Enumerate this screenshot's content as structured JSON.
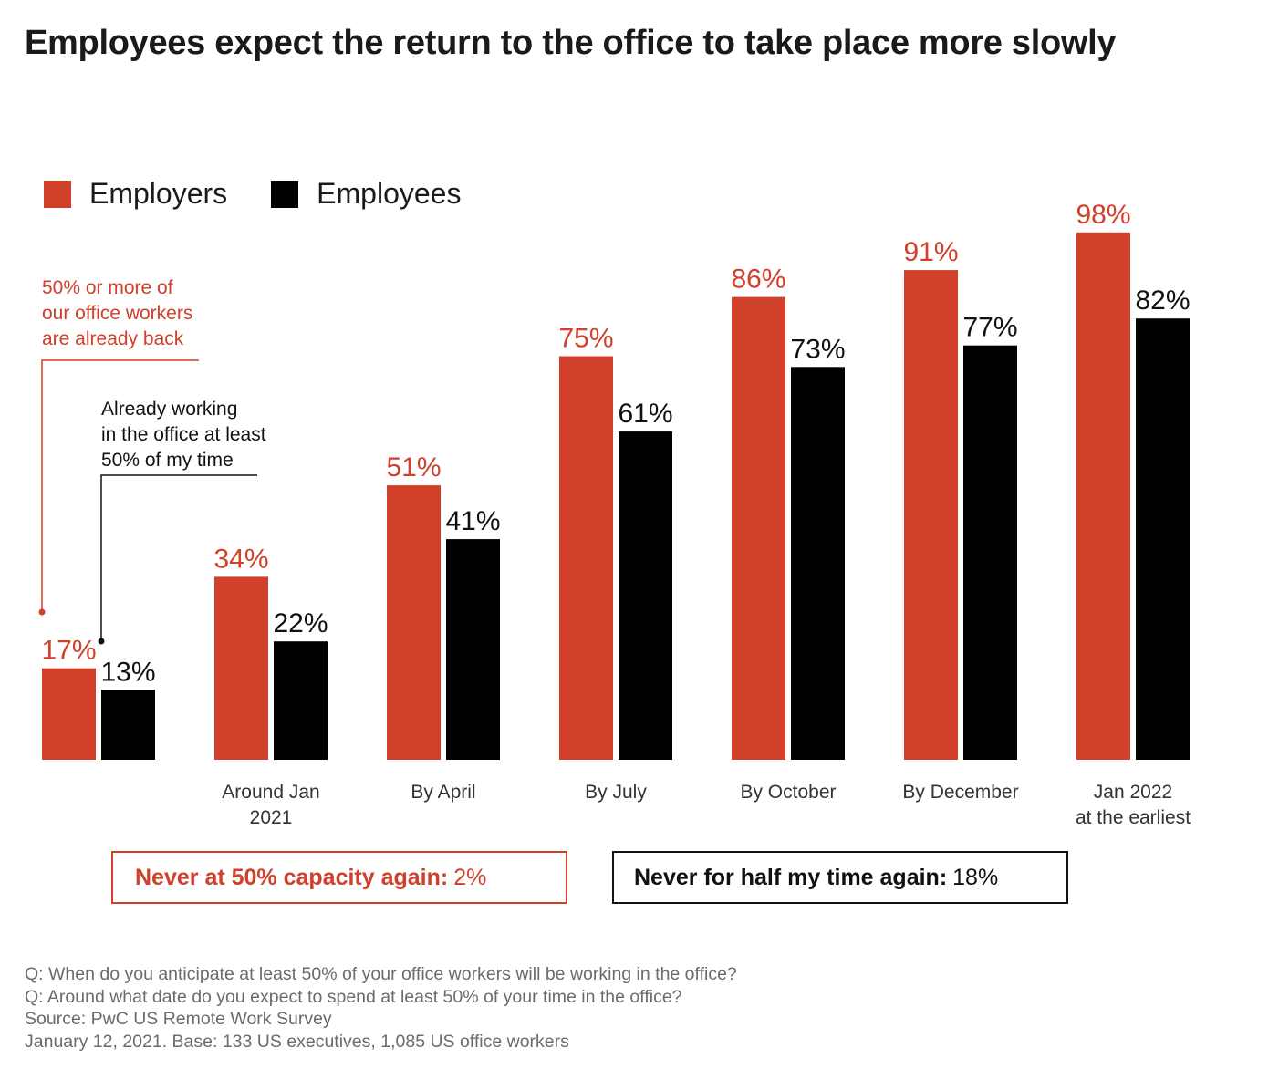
{
  "title": "Employees expect the return to the office to take place more slowly",
  "legend": [
    {
      "label": "Employers",
      "color": "#d0402a"
    },
    {
      "label": "Employees",
      "color": "#000000"
    }
  ],
  "callouts": {
    "employers": [
      "50% or more of",
      "our office workers",
      "are already back"
    ],
    "employees": [
      "Already working",
      "in the office at least",
      "50% of my time"
    ]
  },
  "boxes": {
    "employers": {
      "bold": "Never at 50% capacity again:",
      "value": "2%"
    },
    "employees": {
      "bold": "Never for half my time again:",
      "value": "18%"
    }
  },
  "notes": [
    "Q: When do you anticipate at least 50% of your office workers will be working in the office?",
    "Q: Around what date do you expect to spend at least 50% of your time in the office?",
    "Source: PwC US Remote Work Survey",
    "January 12, 2021. Base: 133 US executives, 1,085 US office workers"
  ],
  "chart_data": {
    "type": "bar",
    "title": "Employees expect the return to the office to take place more slowly",
    "categories": [
      [
        ""
      ],
      [
        "Around Jan",
        "2021"
      ],
      [
        "By April"
      ],
      [
        "By July"
      ],
      [
        "By October"
      ],
      [
        "By December"
      ],
      [
        "Jan 2022",
        "at the earliest"
      ]
    ],
    "series": [
      {
        "name": "Employers",
        "color": "#d0402a",
        "values": [
          17,
          34,
          51,
          75,
          86,
          91,
          98
        ],
        "labels": [
          "17%",
          "34%",
          "51%",
          "75%",
          "86%",
          "91%",
          "98%"
        ]
      },
      {
        "name": "Employees",
        "color": "#000000",
        "values": [
          13,
          22,
          41,
          61,
          73,
          77,
          82
        ],
        "labels": [
          "13%",
          "22%",
          "41%",
          "61%",
          "73%",
          "77%",
          "82%"
        ]
      }
    ],
    "ylim": [
      0,
      100
    ],
    "grid": false,
    "legend_position": "top-left"
  }
}
